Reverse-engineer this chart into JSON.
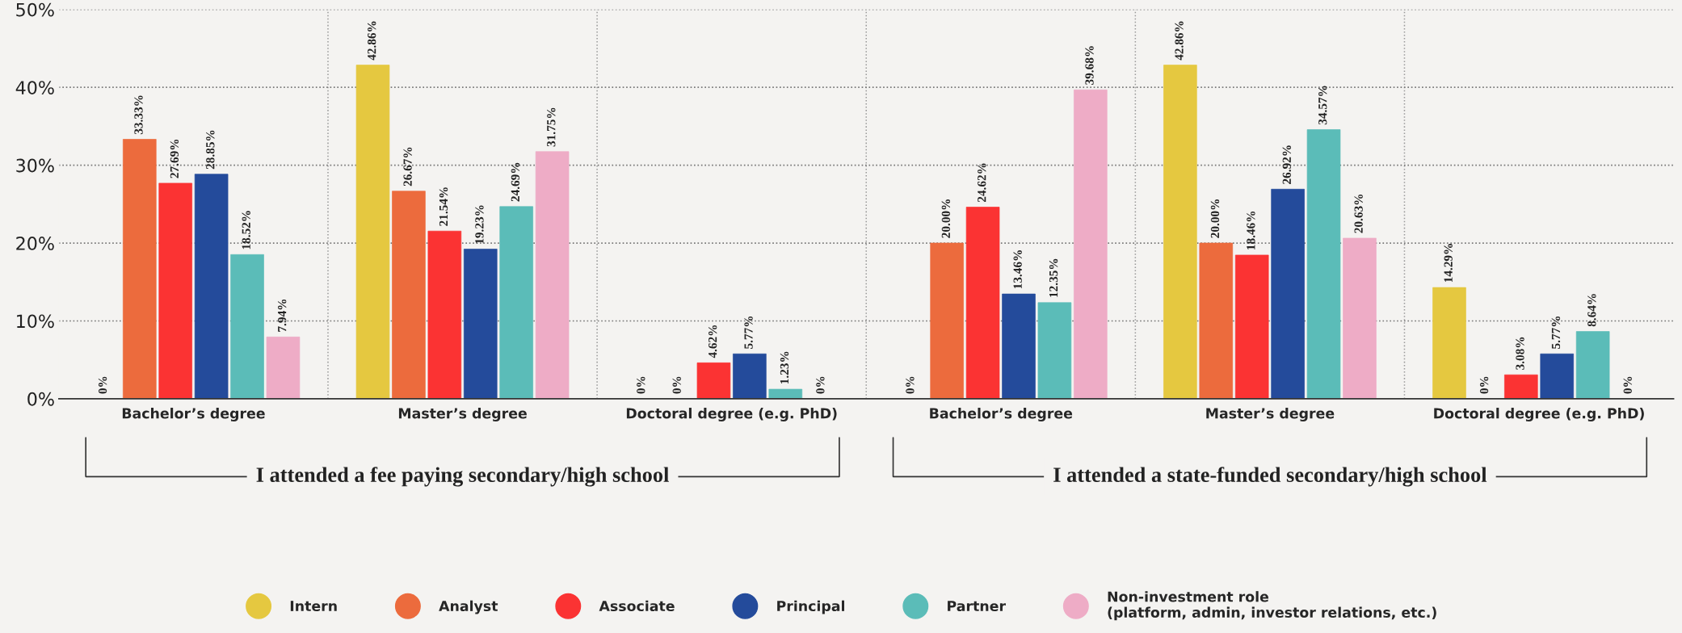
{
  "chart_data": {
    "type": "bar",
    "categories": [
      "Bachelor’s degree",
      "Master’s degree",
      "Doctoral degree (e.g. PhD)",
      "Bachelor’s degree",
      "Master’s degree",
      "Doctoral degree (e.g. PhD)"
    ],
    "series": [
      {
        "name": "Intern",
        "color": "#e5c840",
        "values": [
          0,
          42.86,
          0,
          0,
          42.86,
          14.29
        ],
        "value_labels": [
          "0%",
          "42.86%",
          "0%",
          "0%",
          "42.86%",
          "14.29%"
        ]
      },
      {
        "name": "Analyst",
        "color": "#ec6b3d",
        "values": [
          33.33,
          26.67,
          0,
          20.0,
          20.0,
          0
        ],
        "value_labels": [
          "33.33%",
          "26.67%",
          "0%",
          "20.00%",
          "20.00%",
          "0%"
        ]
      },
      {
        "name": "Associate",
        "color": "#fb3333",
        "values": [
          27.69,
          21.54,
          4.62,
          24.62,
          18.46,
          3.08
        ],
        "value_labels": [
          "27.69%",
          "21.54%",
          "4.62%",
          "24.62%",
          "18.46%",
          "3.08%"
        ]
      },
      {
        "name": "Principal",
        "color": "#244b9b",
        "values": [
          28.85,
          19.23,
          5.77,
          13.46,
          26.92,
          5.77
        ],
        "value_labels": [
          "28.85%",
          "19.23%",
          "5.77%",
          "13.46%",
          "26.92%",
          "5.77%"
        ]
      },
      {
        "name": "Partner",
        "color": "#5bbcb8",
        "values": [
          18.52,
          24.69,
          1.23,
          12.35,
          34.57,
          8.64
        ],
        "value_labels": [
          "18.52%",
          "24.69%",
          "1.23%",
          "12.35%",
          "34.57%",
          "8.64%"
        ]
      },
      {
        "name": "Non-investment role\n(platform, admin, investor relations, etc.)",
        "color": "#eeacc6",
        "values": [
          7.94,
          31.75,
          0,
          39.68,
          20.63,
          0
        ],
        "value_labels": [
          "7.94%",
          "31.75%",
          "0%",
          "39.68%",
          "20.63%",
          "0%"
        ]
      }
    ],
    "ylim": [
      0,
      50
    ],
    "yticks": [
      {
        "value": 0,
        "label": "0%"
      },
      {
        "value": 10,
        "label": "10%"
      },
      {
        "value": 20,
        "label": "20%"
      },
      {
        "value": 30,
        "label": "30%"
      },
      {
        "value": 40,
        "label": "40%"
      },
      {
        "value": 50,
        "label": "50%"
      }
    ],
    "annotations": [
      "I attended a fee paying secondary/high school",
      "I attended a state-funded secondary/high school"
    ],
    "grid": true,
    "legend": "bottom"
  }
}
